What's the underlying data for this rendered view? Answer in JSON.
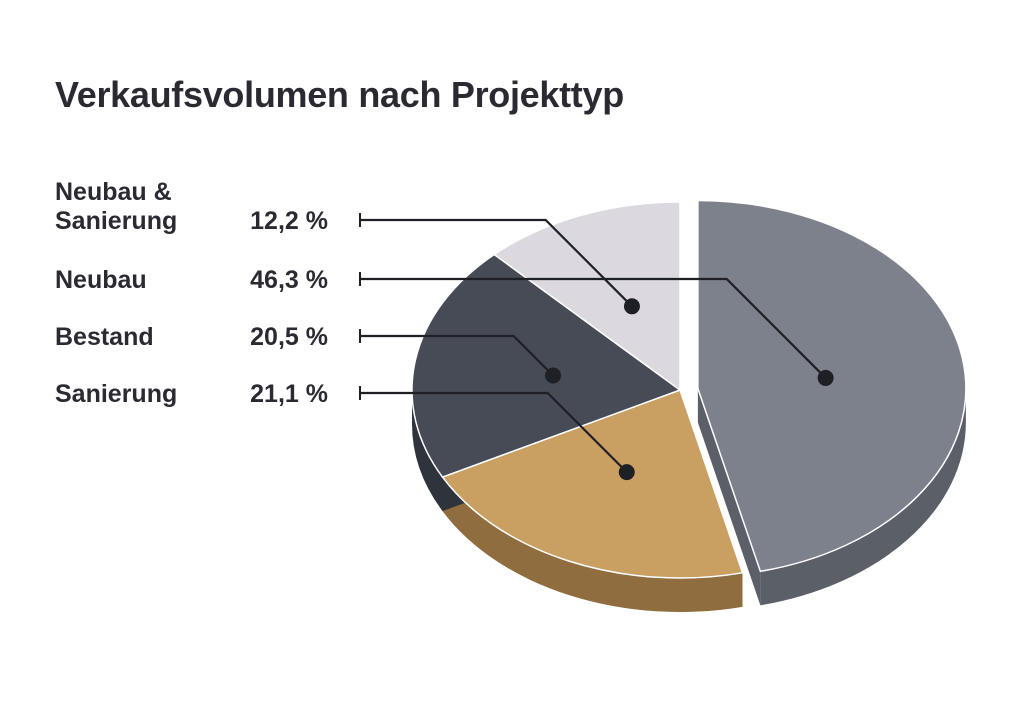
{
  "chart_data": {
    "type": "pie",
    "title": "Verkaufsvolumen nach Projekttyp",
    "categories": [
      "Neubau & Sanierung",
      "Neubau",
      "Bestand",
      "Sanierung"
    ],
    "values": [
      12.2,
      46.3,
      20.5,
      21.1
    ],
    "value_labels": [
      "12,2 %",
      "46,3 %",
      "20,5 %",
      "21,1 %"
    ],
    "unit": "%",
    "style": "3d",
    "exploded": [
      "Neubau"
    ],
    "colors": {
      "Neubau & Sanierung": "#dcd8df",
      "Neubau": "#7c818c",
      "Bestand": "#464b56",
      "Sanierung": "#c99f62"
    },
    "side_colors": {
      "Neubau & Sanierung": "#b7b2ba",
      "Neubau": "#5b5f68",
      "Bestand": "#2f333b",
      "Sanierung": "#8f6d3f"
    },
    "leader_color": "#1f1f26",
    "legend_position": "left"
  }
}
